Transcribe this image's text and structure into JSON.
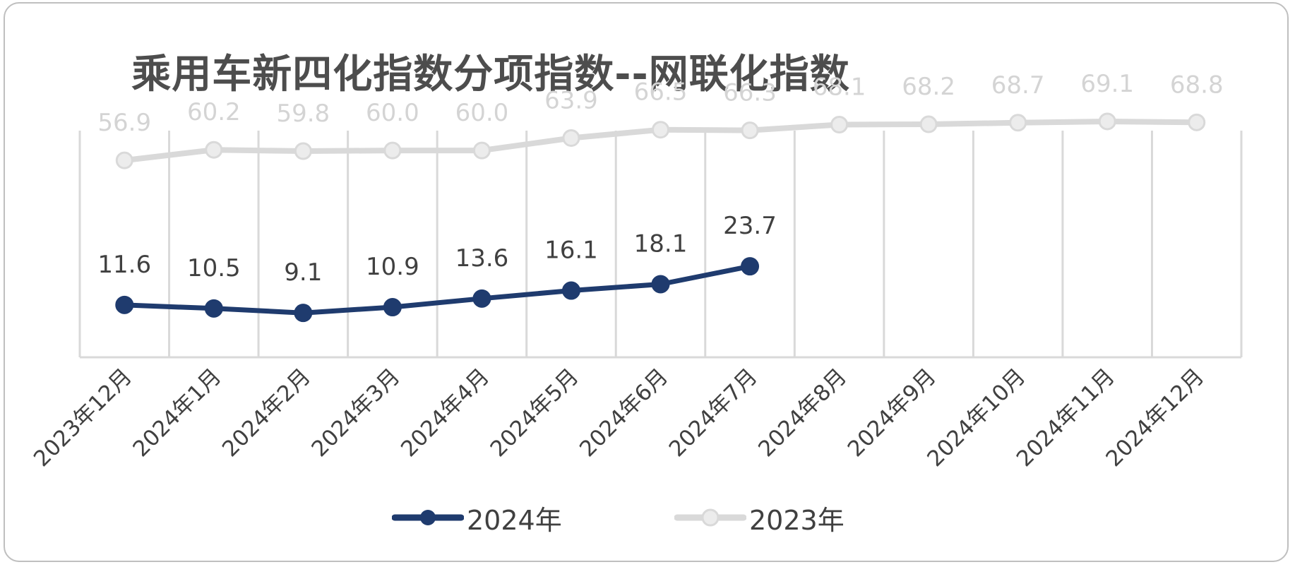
{
  "chart_data": {
    "type": "line",
    "title": "乘用车新四化指数分项指数--网联化指数",
    "categories": [
      "2023年12月",
      "2024年1月",
      "2024年2月",
      "2024年3月",
      "2024年4月",
      "2024年5月",
      "2024年6月",
      "2024年7月",
      "2024年8月",
      "2024年9月",
      "2024年10月",
      "2024年11月",
      "2024年12月"
    ],
    "series": [
      {
        "name": "2024年",
        "color": "#1f3b6e",
        "values": [
          11.6,
          10.5,
          9.1,
          10.9,
          13.6,
          16.1,
          18.1,
          23.7,
          null,
          null,
          null,
          null,
          null
        ]
      },
      {
        "name": "2023年",
        "color": "#d9d9d9",
        "values": [
          56.9,
          60.2,
          59.8,
          60.0,
          60.0,
          63.9,
          66.5,
          66.3,
          68.1,
          68.2,
          68.7,
          69.1,
          68.8
        ]
      }
    ],
    "grid": true,
    "legend_position": "bottom"
  },
  "colors": {
    "title": "#4d4d4d",
    "grid": "#d9d9d9",
    "label": "#404040"
  }
}
